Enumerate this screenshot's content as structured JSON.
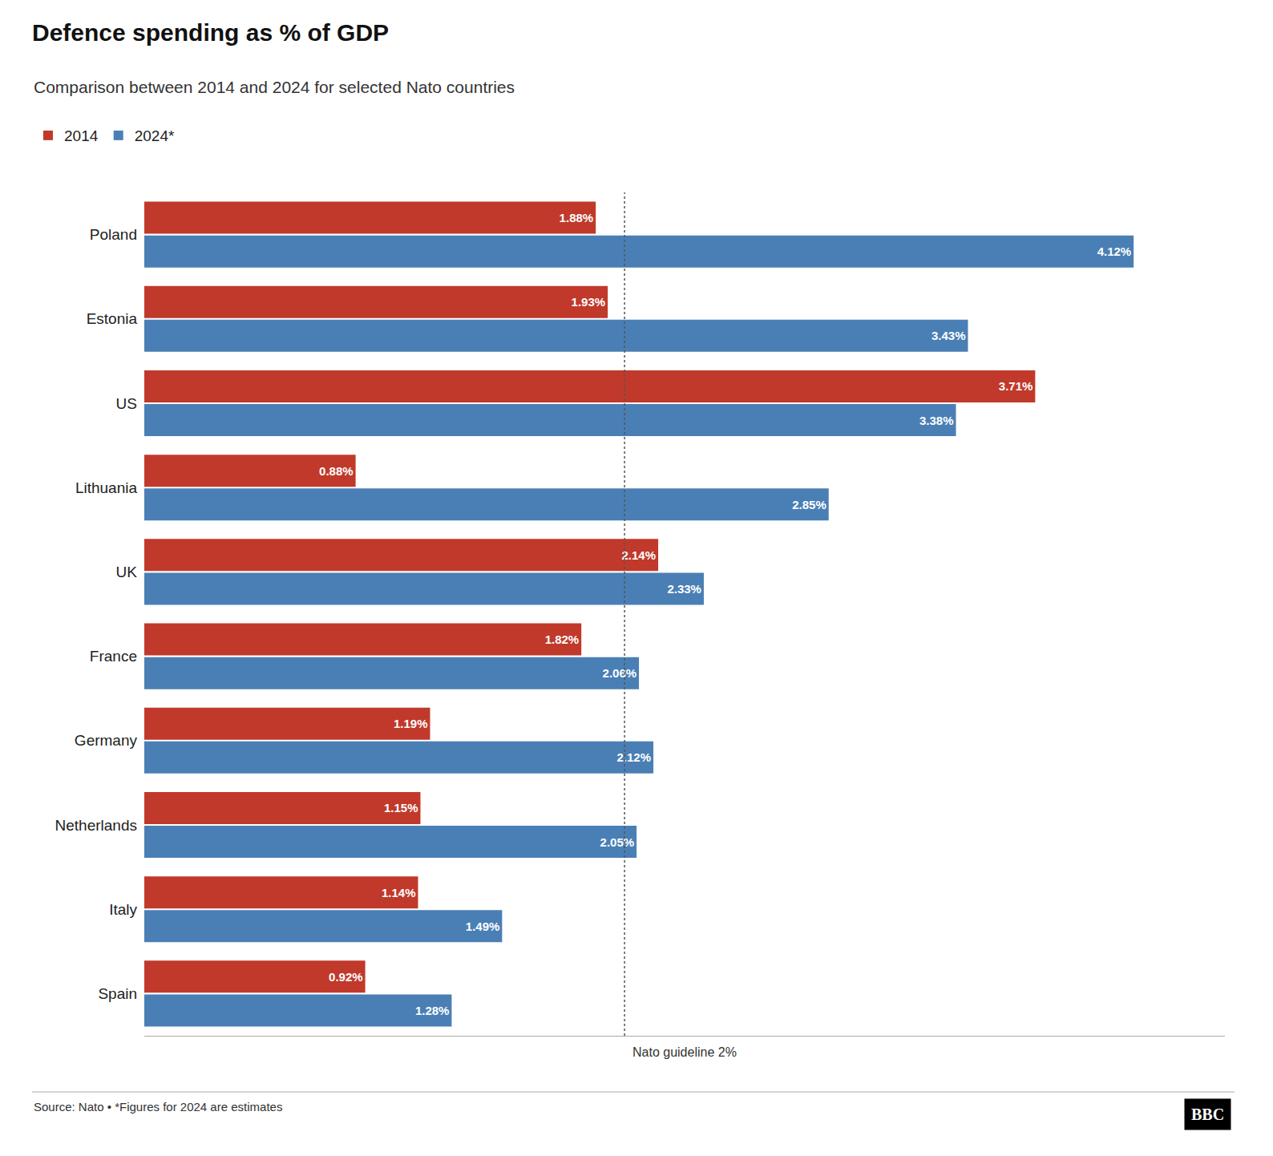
{
  "chart_data": {
    "type": "bar",
    "orientation": "horizontal",
    "title": "Defence spending as % of GDP",
    "subtitle": "Comparison between 2014 and 2024 for selected Nato countries",
    "source": "Source: Nato • *Figures for 2024 are estimates",
    "logo": "BBC",
    "categories": [
      "Poland",
      "Estonia",
      "US",
      "Lithuania",
      "UK",
      "France",
      "Germany",
      "Netherlands",
      "Italy",
      "Spain"
    ],
    "series": [
      {
        "name": "2014",
        "color": "#c0392b",
        "values": [
          1.88,
          1.93,
          3.71,
          0.88,
          2.14,
          1.82,
          1.19,
          1.15,
          1.14,
          0.92
        ],
        "value_labels": [
          "1.88%",
          "1.93%",
          "3.71%",
          "0.88%",
          "2.14%",
          "1.82%",
          "1.19%",
          "1.15%",
          "1.14%",
          "0.92%"
        ]
      },
      {
        "name": "2024*",
        "color": "#4a7fb5",
        "values": [
          4.12,
          3.43,
          3.38,
          2.85,
          2.33,
          2.06,
          2.12,
          2.05,
          1.49,
          1.28
        ],
        "value_labels": [
          "4.12%",
          "3.43%",
          "3.38%",
          "2.85%",
          "2.33%",
          "2.06%",
          "2.12%",
          "2.05%",
          "1.49%",
          "1.28%"
        ]
      }
    ],
    "guideline": {
      "value": 2.0,
      "label": "Nato guideline 2%"
    },
    "xlim": [
      0,
      4.5
    ],
    "xticks": [],
    "tick_labels": "y",
    "data_labels": true,
    "grid": false,
    "legend": "upper left"
  }
}
